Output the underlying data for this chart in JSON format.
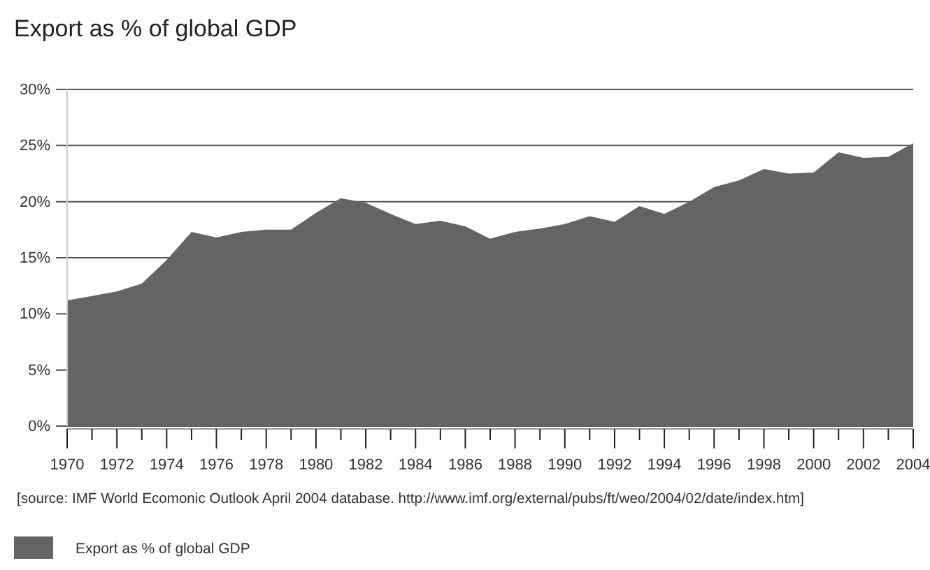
{
  "chart_data": {
    "type": "area",
    "title": "Export as % of global GDP",
    "x": [
      1970,
      1971,
      1972,
      1973,
      1974,
      1975,
      1976,
      1977,
      1978,
      1979,
      1980,
      1981,
      1982,
      1983,
      1984,
      1985,
      1986,
      1987,
      1988,
      1989,
      1990,
      1991,
      1992,
      1993,
      1994,
      1995,
      1996,
      1997,
      1998,
      1999,
      2000,
      2001,
      2002,
      2003,
      2004
    ],
    "series": [
      {
        "name": "Export as % of global GDP",
        "color": "#646464",
        "values": [
          11.2,
          11.6,
          12.0,
          12.7,
          14.8,
          17.3,
          16.8,
          17.3,
          17.5,
          17.5,
          19.0,
          20.3,
          19.9,
          18.9,
          18.0,
          18.3,
          17.8,
          16.7,
          17.3,
          17.6,
          18.0,
          18.7,
          18.2,
          19.6,
          18.9,
          20.0,
          21.3,
          21.9,
          22.9,
          22.5,
          22.6,
          24.4,
          23.9,
          24.0,
          25.2
        ]
      }
    ],
    "xlim": [
      1970,
      2004
    ],
    "xticks": [
      1970,
      {
        "value": 1971,
        "label": null
      },
      1972,
      {
        "value": 1973,
        "label": null
      },
      1974,
      {
        "value": 1975,
        "label": null
      },
      1976,
      {
        "value": 1977,
        "label": null
      },
      1978,
      {
        "value": 1979,
        "label": null
      },
      1980,
      {
        "value": 1981,
        "label": null
      },
      1982,
      {
        "value": 1983,
        "label": null
      },
      1984,
      {
        "value": 1985,
        "label": null
      },
      1986,
      {
        "value": 1987,
        "label": null
      },
      1988,
      {
        "value": 1989,
        "label": null
      },
      1990,
      {
        "value": 1991,
        "label": null
      },
      1992,
      {
        "value": 1993,
        "label": null
      },
      1994,
      {
        "value": 1995,
        "label": null
      },
      1996,
      {
        "value": 1997,
        "label": null
      },
      1998,
      {
        "value": 1999,
        "label": null
      },
      2000,
      {
        "value": 2001,
        "label": null
      },
      2002,
      {
        "value": 2003,
        "label": null
      },
      2004
    ],
    "ylim": [
      0,
      30
    ],
    "yticks": [
      {
        "value": 0,
        "label": "0%"
      },
      {
        "value": 5,
        "label": "5%"
      },
      {
        "value": 10,
        "label": "10%"
      },
      {
        "value": 15,
        "label": "15%"
      },
      {
        "value": 20,
        "label": "20%"
      },
      {
        "value": 25,
        "label": "25%"
      },
      {
        "value": 30,
        "label": "30%"
      }
    ],
    "grid": "y",
    "legend": "bottom left",
    "annotations": [
      "[source: IMF World Ecomonic Outlook April 2004 database. http://www.imf.org/external/pubs/ft/weo/2004/02/date/index.htm]"
    ]
  }
}
